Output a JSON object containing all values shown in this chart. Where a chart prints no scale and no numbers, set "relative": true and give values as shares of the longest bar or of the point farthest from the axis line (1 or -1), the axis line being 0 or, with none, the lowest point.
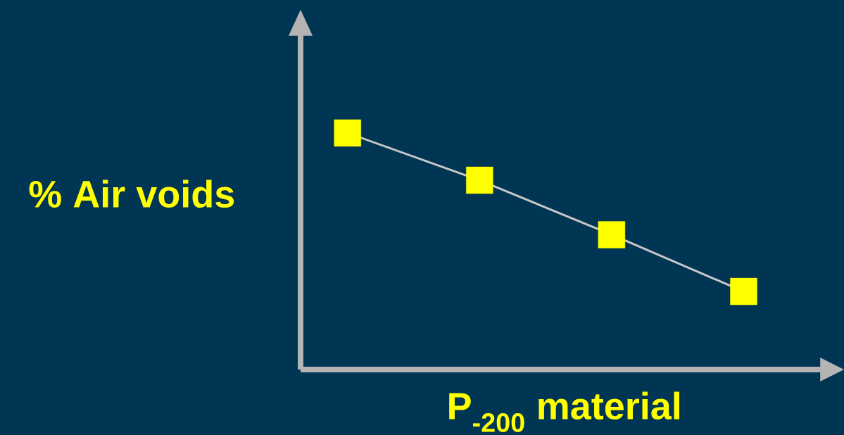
{
  "chart_data": {
    "type": "line",
    "relative": true,
    "xlabel": "P$_{-200}$ material",
    "ylabel": "% Air voids",
    "categories": [
      null,
      null,
      null,
      null
    ],
    "series": [
      {
        "color": "#c8c8c8",
        "colors": [
          "#ffff00",
          "#ffff00",
          "#ffff00",
          "#ffff00"
        ],
        "values": [
          1,
          0.8,
          0.57,
          0.33
        ]
      }
    ],
    "marker": "square",
    "line_style": "solid"
  }
}
